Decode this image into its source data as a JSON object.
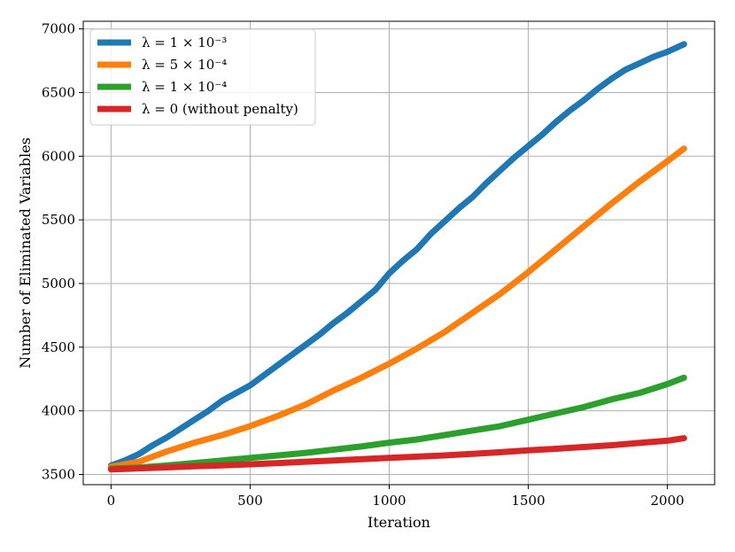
{
  "chart_data": {
    "type": "line",
    "title": "",
    "xlabel": "Iteration",
    "ylabel": "Number of Eliminated Variables",
    "xlim": [
      -100,
      2170
    ],
    "ylim": [
      3420,
      7060
    ],
    "xticks": [
      0,
      500,
      1000,
      1500,
      2000
    ],
    "yticks": [
      3500,
      4000,
      4500,
      5000,
      5500,
      6000,
      6500,
      7000
    ],
    "xtick_labels": [
      "0",
      "500",
      "1000",
      "1500",
      "2000"
    ],
    "ytick_labels": [
      "3500",
      "4000",
      "4500",
      "5000",
      "5500",
      "6000",
      "6500",
      "7000"
    ],
    "grid": true,
    "legend_position": "top-left",
    "series": [
      {
        "name": "λ = 1 × 10⁻³",
        "color": "#1f77b4",
        "x": [
          0,
          50,
          100,
          150,
          200,
          250,
          300,
          350,
          400,
          450,
          500,
          550,
          600,
          650,
          700,
          750,
          800,
          850,
          900,
          950,
          1000,
          1050,
          1100,
          1150,
          1200,
          1250,
          1300,
          1350,
          1400,
          1450,
          1500,
          1550,
          1600,
          1650,
          1700,
          1750,
          1800,
          1850,
          1900,
          1950,
          2000,
          2060
        ],
        "y": [
          3570,
          3610,
          3660,
          3730,
          3790,
          3860,
          3930,
          4000,
          4080,
          4140,
          4200,
          4280,
          4360,
          4440,
          4520,
          4600,
          4690,
          4770,
          4860,
          4950,
          5080,
          5180,
          5270,
          5390,
          5490,
          5590,
          5680,
          5790,
          5890,
          5990,
          6080,
          6170,
          6270,
          6360,
          6440,
          6530,
          6610,
          6680,
          6730,
          6780,
          6820,
          6880
        ]
      },
      {
        "name": "λ = 5 × 10⁻⁴",
        "color": "#ff7f0e",
        "x": [
          0,
          100,
          200,
          300,
          400,
          500,
          600,
          700,
          800,
          900,
          1000,
          1100,
          1200,
          1300,
          1400,
          1500,
          1600,
          1700,
          1800,
          1900,
          2000,
          2060
        ],
        "y": [
          3560,
          3600,
          3680,
          3750,
          3810,
          3880,
          3960,
          4050,
          4160,
          4260,
          4370,
          4490,
          4620,
          4770,
          4920,
          5090,
          5270,
          5450,
          5630,
          5800,
          5960,
          6060
        ]
      },
      {
        "name": "λ = 1 × 10⁻⁴",
        "color": "#2ca02c",
        "x": [
          0,
          100,
          200,
          300,
          400,
          500,
          600,
          700,
          800,
          900,
          1000,
          1100,
          1200,
          1300,
          1400,
          1500,
          1600,
          1700,
          1800,
          1900,
          2000,
          2060
        ],
        "y": [
          3545,
          3555,
          3570,
          3590,
          3610,
          3630,
          3650,
          3670,
          3695,
          3720,
          3750,
          3775,
          3810,
          3845,
          3880,
          3930,
          3980,
          4030,
          4090,
          4140,
          4210,
          4260
        ]
      },
      {
        "name": "λ = 0 (without penalty)",
        "color": "#d62728",
        "x": [
          0,
          100,
          200,
          300,
          400,
          500,
          600,
          700,
          800,
          900,
          1000,
          1100,
          1200,
          1300,
          1400,
          1500,
          1600,
          1700,
          1800,
          1900,
          2000,
          2060
        ],
        "y": [
          3540,
          3548,
          3556,
          3564,
          3572,
          3580,
          3590,
          3600,
          3610,
          3620,
          3630,
          3640,
          3650,
          3662,
          3675,
          3690,
          3702,
          3716,
          3730,
          3748,
          3765,
          3785
        ]
      }
    ]
  }
}
